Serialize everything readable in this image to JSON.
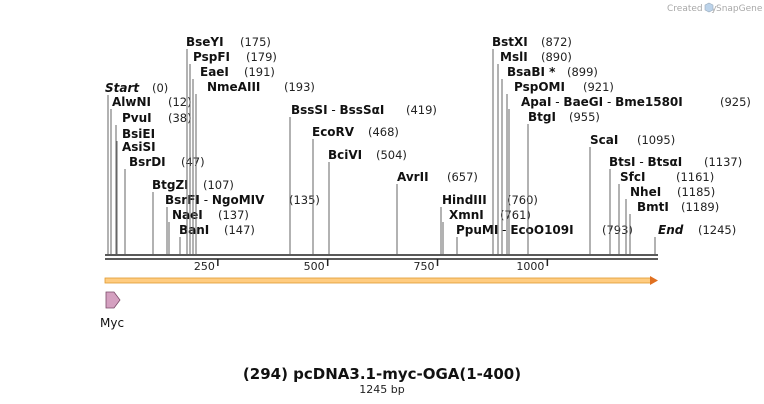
{
  "credit": {
    "prefix": "Created by",
    "brand": "SnapGene"
  },
  "sequence": {
    "title": "(294) pcDNA3.1-myc-OGA(1-400)",
    "length_label": "1245 bp",
    "length": 1245
  },
  "sites": [
    {
      "names": [
        "Start"
      ],
      "pos": "(0)",
      "bp": 0,
      "style": "italic"
    },
    {
      "names": [
        "AlwNI"
      ],
      "pos": "(12)",
      "bp": 12
    },
    {
      "names": [
        "PvuI"
      ],
      "pos": "(38)",
      "bp": 38
    },
    {
      "names": [
        "BsiEI"
      ],
      "pos": "",
      "bp": 38
    },
    {
      "names": [
        "AsiSI"
      ],
      "pos": "",
      "bp": 38
    },
    {
      "names": [
        "BsrDI"
      ],
      "pos": "(47)",
      "bp": 47
    },
    {
      "names": [
        "BtgZI"
      ],
      "pos": "(107)",
      "bp": 107
    },
    {
      "names": [
        "BsrFI",
        "NgoMIV"
      ],
      "pos": "(135)",
      "bp": 135
    },
    {
      "names": [
        "NaeI"
      ],
      "pos": "(137)",
      "bp": 137
    },
    {
      "names": [
        "BanI"
      ],
      "pos": "(147)",
      "bp": 147
    },
    {
      "names": [
        "BseYI"
      ],
      "pos": "(175)",
      "bp": 175
    },
    {
      "names": [
        "PspFI"
      ],
      "pos": "(179)",
      "bp": 179
    },
    {
      "names": [
        "EaeI"
      ],
      "pos": "(191)",
      "bp": 191
    },
    {
      "names": [
        "NmeAIII"
      ],
      "pos": "(193)",
      "bp": 193
    },
    {
      "names": [
        "BssSI",
        "BssSαI"
      ],
      "pos": "(419)",
      "bp": 419
    },
    {
      "names": [
        "EcoRV"
      ],
      "pos": "(468)",
      "bp": 468
    },
    {
      "names": [
        "BciVI"
      ],
      "pos": "(504)",
      "bp": 504
    },
    {
      "names": [
        "AvrII"
      ],
      "pos": "(657)",
      "bp": 657
    },
    {
      "names": [
        "HindIII"
      ],
      "pos": "(760)",
      "bp": 760
    },
    {
      "names": [
        "XmnI"
      ],
      "pos": "(761)",
      "bp": 761
    },
    {
      "names": [
        "PpuMI",
        "EcoO109I"
      ],
      "pos": "(793)",
      "bp": 793
    },
    {
      "names": [
        "BstXI"
      ],
      "pos": "(872)",
      "bp": 872
    },
    {
      "names": [
        "MslI"
      ],
      "pos": "(890)",
      "bp": 890
    },
    {
      "names": [
        "BsaBI *"
      ],
      "pos": "(899)",
      "bp": 899
    },
    {
      "names": [
        "PspOMI"
      ],
      "pos": "(921)",
      "bp": 921
    },
    {
      "names": [
        "ApaI",
        "BaeGI",
        "Bme1580I"
      ],
      "pos": "(925)",
      "bp": 925
    },
    {
      "names": [
        "BtgI"
      ],
      "pos": "(955)",
      "bp": 955
    },
    {
      "names": [
        "ScaI"
      ],
      "pos": "(1095)",
      "bp": 1095
    },
    {
      "names": [
        "BtsI",
        "BtsαI"
      ],
      "pos": "(1137)",
      "bp": 1137
    },
    {
      "names": [
        "SfcI"
      ],
      "pos": "(1161)",
      "bp": 1161
    },
    {
      "names": [
        "NheI"
      ],
      "pos": "(1185)",
      "bp": 1185
    },
    {
      "names": [
        "BmtI"
      ],
      "pos": "(1189)",
      "bp": 1189
    },
    {
      "names": [
        "End"
      ],
      "pos": "(1245)",
      "bp": 1245,
      "style": "italic"
    }
  ],
  "ruler": {
    "ticks": [
      "250",
      "500",
      "750",
      "1000"
    ]
  },
  "features": [
    {
      "name": "Myc",
      "color": "#d4a0c0",
      "stroke": "#7a4a68"
    }
  ],
  "colors": {
    "orf_arrow": "#ffb347",
    "backbone": "#222222"
  }
}
